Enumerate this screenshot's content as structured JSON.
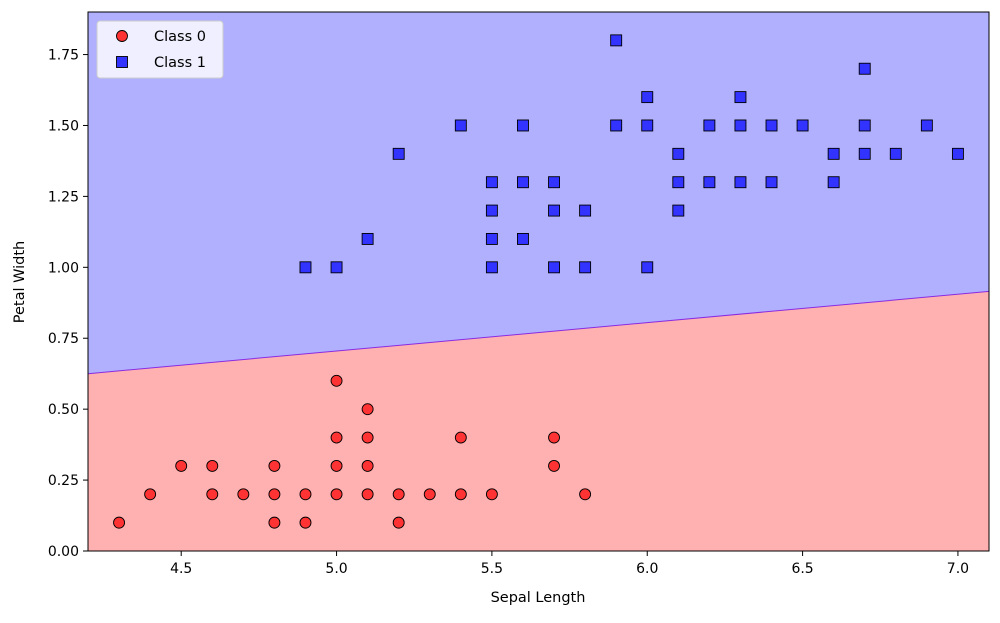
{
  "chart_data": {
    "type": "scatter",
    "title": "",
    "xlabel": "Sepal Length",
    "ylabel": "Petal Width",
    "xlim": [
      4.2,
      7.1
    ],
    "ylim": [
      0.0,
      1.9
    ],
    "xticks": [
      4.5,
      5.0,
      5.5,
      6.0,
      6.5,
      7.0
    ],
    "xtick_labels": [
      "4.5",
      "5.0",
      "5.5",
      "6.0",
      "6.5",
      "7.0"
    ],
    "yticks": [
      0.0,
      0.25,
      0.5,
      0.75,
      1.0,
      1.25,
      1.5,
      1.75
    ],
    "ytick_labels": [
      "0.00",
      "0.25",
      "0.50",
      "0.75",
      "1.00",
      "1.25",
      "1.50",
      "1.75"
    ],
    "grid": false,
    "legend_position": "top-left",
    "decision_boundary": {
      "points": [
        [
          4.2,
          0.625
        ],
        [
          7.1,
          0.915
        ]
      ],
      "region_colors": {
        "Class 0": "#ffb0b0",
        "Class 1": "#b0b0ff"
      },
      "line_color": "#8a2be2"
    },
    "series": [
      {
        "name": "Class 0",
        "marker": "circle",
        "color": "#ff3333",
        "points": [
          [
            4.3,
            0.1
          ],
          [
            4.4,
            0.2
          ],
          [
            4.5,
            0.3
          ],
          [
            4.6,
            0.2
          ],
          [
            4.6,
            0.3
          ],
          [
            4.7,
            0.2
          ],
          [
            4.8,
            0.1
          ],
          [
            4.8,
            0.2
          ],
          [
            4.8,
            0.3
          ],
          [
            4.9,
            0.1
          ],
          [
            4.9,
            0.2
          ],
          [
            5.0,
            0.2
          ],
          [
            5.0,
            0.3
          ],
          [
            5.0,
            0.4
          ],
          [
            5.0,
            0.6
          ],
          [
            5.1,
            0.2
          ],
          [
            5.1,
            0.3
          ],
          [
            5.1,
            0.4
          ],
          [
            5.1,
            0.5
          ],
          [
            5.2,
            0.1
          ],
          [
            5.2,
            0.2
          ],
          [
            5.3,
            0.2
          ],
          [
            5.4,
            0.2
          ],
          [
            5.4,
            0.4
          ],
          [
            5.5,
            0.2
          ],
          [
            5.7,
            0.3
          ],
          [
            5.7,
            0.4
          ],
          [
            5.8,
            0.2
          ]
        ]
      },
      {
        "name": "Class 1",
        "marker": "square",
        "color": "#3333ff",
        "points": [
          [
            4.9,
            1.0
          ],
          [
            5.0,
            1.0
          ],
          [
            5.1,
            1.1
          ],
          [
            5.2,
            1.4
          ],
          [
            5.4,
            1.5
          ],
          [
            5.5,
            1.0
          ],
          [
            5.5,
            1.1
          ],
          [
            5.5,
            1.2
          ],
          [
            5.5,
            1.3
          ],
          [
            5.6,
            1.1
          ],
          [
            5.6,
            1.3
          ],
          [
            5.6,
            1.5
          ],
          [
            5.7,
            1.0
          ],
          [
            5.7,
            1.2
          ],
          [
            5.7,
            1.3
          ],
          [
            5.8,
            1.0
          ],
          [
            5.8,
            1.2
          ],
          [
            5.9,
            1.5
          ],
          [
            5.9,
            1.8
          ],
          [
            6.0,
            1.0
          ],
          [
            6.0,
            1.5
          ],
          [
            6.0,
            1.6
          ],
          [
            6.1,
            1.2
          ],
          [
            6.1,
            1.3
          ],
          [
            6.1,
            1.4
          ],
          [
            6.2,
            1.3
          ],
          [
            6.2,
            1.5
          ],
          [
            6.3,
            1.3
          ],
          [
            6.3,
            1.5
          ],
          [
            6.3,
            1.6
          ],
          [
            6.4,
            1.3
          ],
          [
            6.4,
            1.5
          ],
          [
            6.5,
            1.5
          ],
          [
            6.6,
            1.3
          ],
          [
            6.6,
            1.4
          ],
          [
            6.7,
            1.4
          ],
          [
            6.7,
            1.5
          ],
          [
            6.7,
            1.7
          ],
          [
            6.8,
            1.4
          ],
          [
            6.9,
            1.5
          ],
          [
            7.0,
            1.4
          ]
        ]
      }
    ]
  }
}
